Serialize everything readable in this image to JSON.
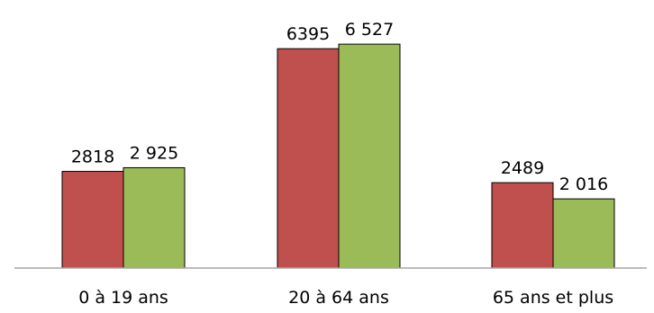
{
  "chart_data": {
    "type": "bar",
    "categories": [
      "0 à 19 ans",
      "20 à 64 ans",
      "65 ans et plus"
    ],
    "series": [
      {
        "color": "#C0504D",
        "values": [
          2818,
          6395,
          2489
        ],
        "value_labels": [
          "2818",
          "6395",
          "2489"
        ]
      },
      {
        "color": "#9BBB59",
        "values": [
          2925,
          6527,
          2016
        ],
        "value_labels": [
          "2 925",
          "6 527",
          "2 016"
        ]
      }
    ],
    "ylim": [
      0,
      7500
    ],
    "grid": false,
    "legend": "none",
    "axis_color": "#A6A6A6",
    "bar_outline_color": "#000000"
  }
}
